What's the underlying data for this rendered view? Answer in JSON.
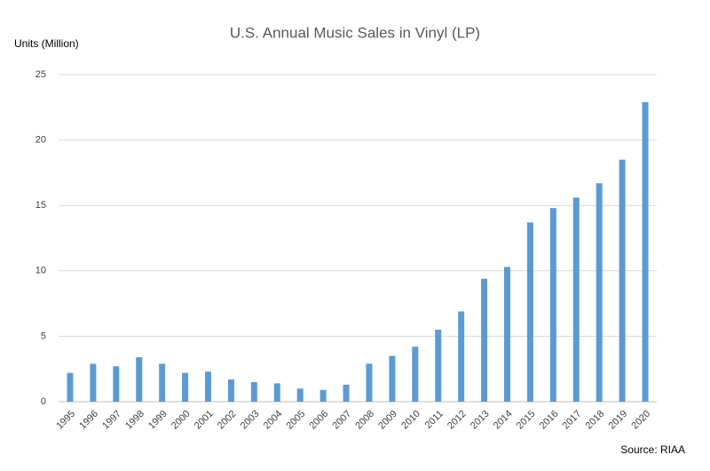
{
  "chart_data": {
    "type": "bar",
    "title": "U.S. Annual Music Sales in Vinyl (LP)",
    "y_label": "Units (Million)",
    "source": "Source: RIAA",
    "categories": [
      "1995",
      "1996",
      "1997",
      "1998",
      "1999",
      "2000",
      "2001",
      "2002",
      "2003",
      "2004",
      "2005",
      "2006",
      "2007",
      "2008",
      "2009",
      "2010",
      "2011",
      "2012",
      "2013",
      "2014",
      "2015",
      "2016",
      "2017",
      "2018",
      "2019",
      "2020"
    ],
    "values": [
      2.2,
      2.9,
      2.7,
      3.4,
      2.9,
      2.2,
      2.3,
      1.7,
      1.5,
      1.4,
      1.0,
      0.9,
      1.3,
      2.9,
      3.5,
      4.2,
      5.5,
      6.9,
      9.4,
      10.3,
      13.7,
      14.8,
      15.6,
      16.7,
      18.5,
      22.9
    ],
    "color": "#5b9bd5",
    "ylim": [
      0,
      25
    ],
    "yticks": [
      0,
      5,
      10,
      15,
      20,
      25
    ],
    "grid": true
  }
}
